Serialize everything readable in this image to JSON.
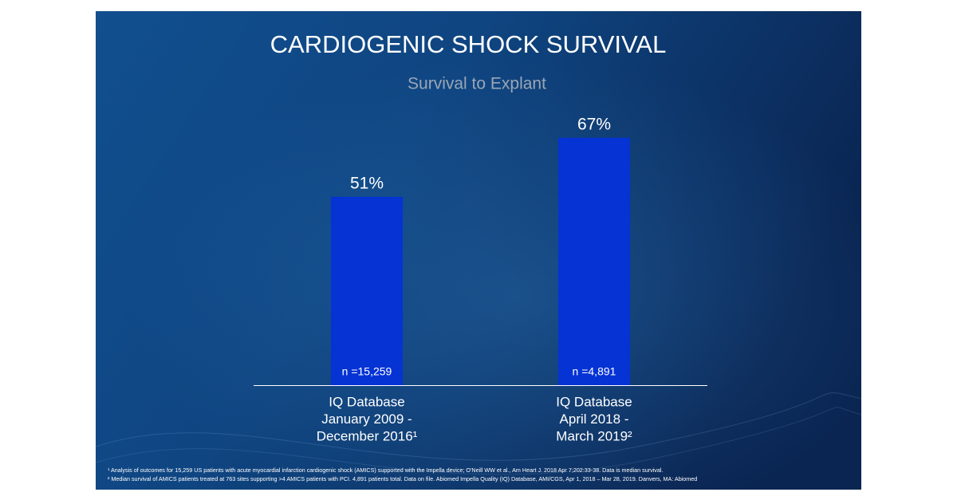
{
  "chart_data": {
    "type": "bar",
    "title": "CARDIOGENIC SHOCK SURVIVAL",
    "subtitle": "Survival to Explant",
    "categories": [
      [
        "IQ Database",
        "January 2009 -",
        "December 2016¹"
      ],
      [
        "IQ Database",
        "April 2018 -",
        "March 2019²"
      ]
    ],
    "values": [
      51,
      67
    ],
    "value_labels": [
      "51%",
      "67%"
    ],
    "bar_notes": [
      "n =15,259",
      "n =4,891"
    ],
    "color": "#0533d4",
    "footnotes": [
      "¹ Analysis of outcomes for 15,259 US patients with acute myocardial infarction cardiogenic shock (AMICS) supported with the Impella device; O'Neill WW et al., Am Heart J. 2018 Apr 7;202:33-38. Data is median survival.",
      "² Median survival of AMICS patients treated at 763 sites supporting >4 AMICS patients with PCI. 4,891 patients total. Data on file. Abiomed Impella Quality (IQ) Database, AMI/CGS, Apr 1, 2018 – Mar 28, 2019. Danvers, MA: Abiomed"
    ]
  }
}
